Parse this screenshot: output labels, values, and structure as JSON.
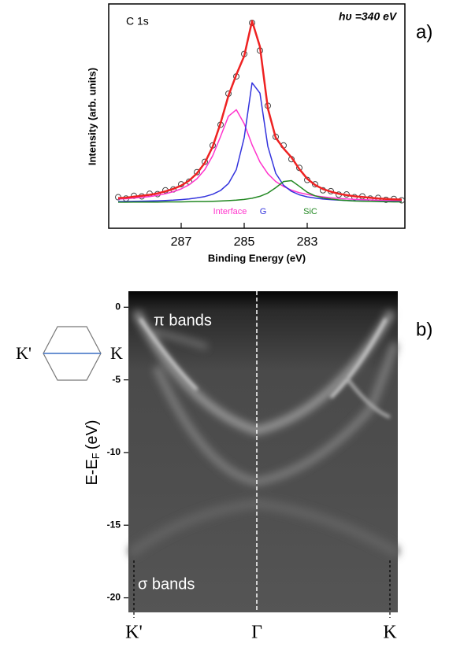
{
  "chart_data": [
    {
      "type": "line",
      "panel_label": "a)",
      "annotations": [
        "C 1s",
        "hυ =340 eV"
      ],
      "x_label": "Binding Energy (eV)",
      "y_label": "Intensity (arb. units)",
      "xlim": [
        289.3,
        279.9
      ],
      "ylim": [
        -0.15,
        1.15
      ],
      "xticks": [
        287,
        285,
        283
      ],
      "x": [
        289,
        288.75,
        288.5,
        288.25,
        288,
        287.75,
        287.5,
        287.25,
        287,
        286.75,
        286.5,
        286.25,
        286,
        285.75,
        285.5,
        285.25,
        285,
        284.75,
        284.5,
        284.25,
        284,
        283.75,
        283.5,
        283.25,
        283,
        282.75,
        282.5,
        282.25,
        282,
        281.75,
        281.5,
        281.25,
        281,
        280.75,
        280.5,
        280.25,
        280
      ],
      "series": [
        {
          "color": "#444444",
          "marker": "circle",
          "values": [
            0.03,
            0.022,
            0.038,
            0.035,
            0.05,
            0.048,
            0.07,
            0.075,
            0.105,
            0.12,
            0.175,
            0.235,
            0.33,
            0.45,
            0.63,
            0.73,
            0.86,
            1.04,
            0.88,
            0.56,
            0.38,
            0.33,
            0.25,
            0.2,
            0.13,
            0.105,
            0.07,
            0.065,
            0.045,
            0.046,
            0.03,
            0.035,
            0.022,
            0.026,
            0.015,
            0.02,
            0.012
          ]
        },
        {
          "name": "Interface",
          "color": "#ff33cc",
          "values": [
            0.019,
            0.021,
            0.025,
            0.029,
            0.034,
            0.041,
            0.05,
            0.062,
            0.078,
            0.102,
            0.137,
            0.19,
            0.27,
            0.382,
            0.499,
            0.537,
            0.456,
            0.334,
            0.234,
            0.166,
            0.121,
            0.092,
            0.071,
            0.056,
            0.046,
            0.038,
            0.032,
            0.027,
            0.023,
            0.02,
            0.018,
            0.016,
            0.014,
            0.012,
            0.011,
            0.01,
            0.009
          ]
        },
        {
          "name": "G",
          "color": "#3333dd",
          "values": [
            0.005,
            0.005,
            0.006,
            0.007,
            0.008,
            0.009,
            0.011,
            0.013,
            0.016,
            0.02,
            0.026,
            0.034,
            0.047,
            0.069,
            0.109,
            0.19,
            0.375,
            0.693,
            0.633,
            0.325,
            0.169,
            0.099,
            0.064,
            0.044,
            0.032,
            0.025,
            0.019,
            0.016,
            0.013,
            0.011,
            0.009,
            0.008,
            0.007,
            0.006,
            0.005,
            0.005,
            0.004
          ]
        },
        {
          "name": "SiC",
          "color": "#228822",
          "values": [
            0.001,
            0.001,
            0.002,
            0.002,
            0.002,
            0.002,
            0.003,
            0.003,
            0.003,
            0.004,
            0.005,
            0.005,
            0.006,
            0.008,
            0.01,
            0.013,
            0.017,
            0.024,
            0.035,
            0.054,
            0.085,
            0.121,
            0.126,
            0.093,
            0.059,
            0.038,
            0.026,
            0.019,
            0.014,
            0.011,
            0.008,
            0.007,
            0.006,
            0.005,
            0.004,
            0.003,
            0.003
          ]
        },
        {
          "color": "#ee2222",
          "values": [
            0.025,
            0.027,
            0.033,
            0.038,
            0.044,
            0.052,
            0.064,
            0.078,
            0.097,
            0.126,
            0.168,
            0.229,
            0.323,
            0.459,
            0.618,
            0.74,
            0.848,
            1.051,
            0.902,
            0.545,
            0.375,
            0.312,
            0.261,
            0.193,
            0.137,
            0.101,
            0.077,
            0.062,
            0.05,
            0.042,
            0.035,
            0.031,
            0.027,
            0.023,
            0.02,
            0.018,
            0.016
          ]
        }
      ]
    },
    {
      "type": "image",
      "panel_label": "b)",
      "y_label": {
        "main": "E-E",
        "sub": "F",
        "unit": "(eV)"
      },
      "ylim": [
        -21,
        1.1
      ],
      "yticks": [
        0,
        -5,
        -10,
        -15,
        -20
      ],
      "x_labels": [
        "K'",
        "Γ",
        "K"
      ],
      "annotations": [
        "π bands",
        "σ bands"
      ],
      "inset_labels": [
        "K'",
        "K"
      ]
    }
  ]
}
